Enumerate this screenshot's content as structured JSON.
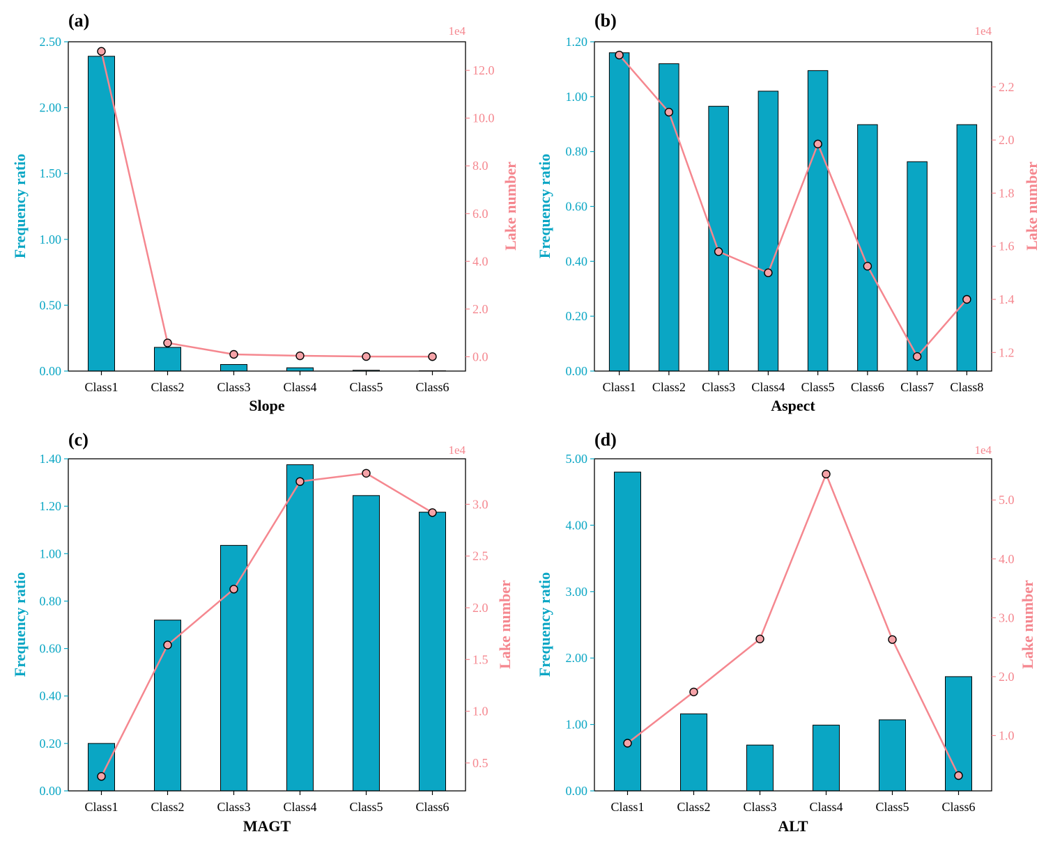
{
  "colors": {
    "bar": "#0aa6c4",
    "line": "#f5878f",
    "marker": "#f5a3a8",
    "left_axis": "#0aa6c4",
    "right_axis": "#f5878f"
  },
  "chart_data": [
    {
      "type": "bar",
      "panel_label": "(a)",
      "title": "",
      "xlabel": "Slope",
      "ylabel": "Frequency ratio",
      "y2label": "Lake number",
      "y2_offset_label": "1e4",
      "categories": [
        "Class1",
        "Class2",
        "Class3",
        "Class4",
        "Class5",
        "Class6"
      ],
      "series": [
        {
          "name": "Frequency ratio",
          "type": "bar",
          "axis": "left",
          "values": [
            2.39,
            0.18,
            0.05,
            0.025,
            0.006,
            0.002
          ]
        },
        {
          "name": "Lake number",
          "type": "line",
          "axis": "right",
          "values": [
            12.8,
            0.58,
            0.1,
            0.04,
            0.01,
            0.005
          ]
        }
      ],
      "ylim": [
        0,
        2.5
      ],
      "yticks": [
        0,
        0.5,
        1.0,
        1.5,
        2.0,
        2.5
      ],
      "ytick_labels": [
        "0.00",
        "0.50",
        "1.00",
        "1.50",
        "2.00",
        "2.50"
      ],
      "y2lim": [
        -0.6,
        13.2
      ],
      "y2ticks": [
        0,
        2,
        4,
        6,
        8,
        10,
        12
      ],
      "y2tick_labels": [
        "0.0",
        "2.0",
        "4.0",
        "6.0",
        "8.0",
        "10.0",
        "12.0"
      ]
    },
    {
      "type": "bar",
      "panel_label": "(b)",
      "title": "",
      "xlabel": "Aspect",
      "ylabel": "Frequency ratio",
      "y2label": "Lake number",
      "y2_offset_label": "1e4",
      "categories": [
        "Class1",
        "Class2",
        "Class3",
        "Class4",
        "Class5",
        "Class6",
        "Class7",
        "Class8"
      ],
      "series": [
        {
          "name": "Frequency ratio",
          "type": "bar",
          "axis": "left",
          "values": [
            1.16,
            1.12,
            0.965,
            1.02,
            1.095,
            0.898,
            0.763,
            0.898
          ]
        },
        {
          "name": "Lake number",
          "type": "line",
          "axis": "right",
          "values": [
            2.32,
            2.105,
            1.58,
            1.5,
            1.985,
            1.525,
            1.185,
            1.4
          ]
        }
      ],
      "ylim": [
        0,
        1.2
      ],
      "yticks": [
        0,
        0.2,
        0.4,
        0.6,
        0.8,
        1.0,
        1.2
      ],
      "ytick_labels": [
        "0.00",
        "0.20",
        "0.40",
        "0.60",
        "0.80",
        "1.00",
        "1.20"
      ],
      "y2lim": [
        1.13,
        2.37
      ],
      "y2ticks": [
        1.2,
        1.4,
        1.6,
        1.8,
        2.0,
        2.2
      ],
      "y2tick_labels": [
        "1.2",
        "1.4",
        "1.6",
        "1.8",
        "2.0",
        "2.2"
      ]
    },
    {
      "type": "bar",
      "panel_label": "(c)",
      "title": "",
      "xlabel": "MAGT",
      "ylabel": "Frequency ratio",
      "y2label": "Lake number",
      "y2_offset_label": "1e4",
      "categories": [
        "Class1",
        "Class2",
        "Class3",
        "Class4",
        "Class5",
        "Class6"
      ],
      "series": [
        {
          "name": "Frequency ratio",
          "type": "bar",
          "axis": "left",
          "values": [
            0.2,
            0.72,
            1.035,
            1.375,
            1.245,
            1.175
          ]
        },
        {
          "name": "Lake number",
          "type": "line",
          "axis": "right",
          "values": [
            0.37,
            1.64,
            2.18,
            3.22,
            3.3,
            2.92
          ]
        }
      ],
      "ylim": [
        0,
        1.4
      ],
      "yticks": [
        0,
        0.2,
        0.4,
        0.6,
        0.8,
        1.0,
        1.2,
        1.4
      ],
      "ytick_labels": [
        "0.00",
        "0.20",
        "0.40",
        "0.60",
        "0.80",
        "1.00",
        "1.20",
        "1.40"
      ],
      "y2lim": [
        0.23,
        3.44
      ],
      "y2ticks": [
        0.5,
        1.0,
        1.5,
        2.0,
        2.5,
        3.0
      ],
      "y2tick_labels": [
        "0.5",
        "1.0",
        "1.5",
        "2.0",
        "2.5",
        "3.0"
      ]
    },
    {
      "type": "bar",
      "panel_label": "(d)",
      "title": "",
      "xlabel": "ALT",
      "ylabel": "Frequency ratio",
      "y2label": "Lake number",
      "y2_offset_label": "1e4",
      "categories": [
        "Class1",
        "Class2",
        "Class3",
        "Class4",
        "Class5",
        "Class6"
      ],
      "series": [
        {
          "name": "Frequency ratio",
          "type": "bar",
          "axis": "left",
          "values": [
            4.8,
            1.16,
            0.69,
            0.99,
            1.07,
            1.72
          ]
        },
        {
          "name": "Lake number",
          "type": "line",
          "axis": "right",
          "values": [
            0.87,
            1.74,
            2.64,
            5.44,
            2.63,
            0.32
          ]
        }
      ],
      "ylim": [
        0,
        5.0
      ],
      "yticks": [
        0,
        1,
        2,
        3,
        4,
        5
      ],
      "ytick_labels": [
        "0.00",
        "1.00",
        "2.00",
        "3.00",
        "4.00",
        "5.00"
      ],
      "y2lim": [
        0.06,
        5.7
      ],
      "y2ticks": [
        1,
        2,
        3,
        4,
        5
      ],
      "y2tick_labels": [
        "1.0",
        "2.0",
        "3.0",
        "4.0",
        "5.0"
      ]
    }
  ]
}
